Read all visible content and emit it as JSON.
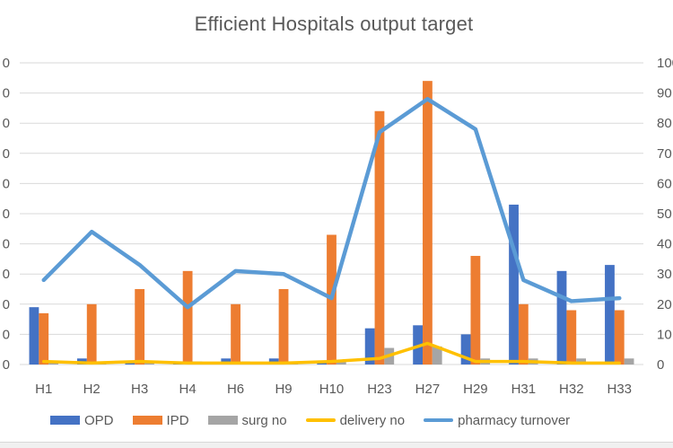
{
  "chart_data": {
    "type": "combo",
    "title": "Efficient Hospitals output target",
    "categories": [
      "H1",
      "H2",
      "H3",
      "H4",
      "H6",
      "H9",
      "H10",
      "H23",
      "H27",
      "H29",
      "H31",
      "H32",
      "H33"
    ],
    "series": [
      {
        "name": "OPD",
        "type": "bar",
        "color": "#4472C4",
        "values": [
          19,
          2,
          1,
          1,
          2,
          2,
          1,
          12,
          13,
          10,
          53,
          31,
          33
        ]
      },
      {
        "name": "IPD",
        "type": "bar",
        "color": "#ED7D31",
        "values": [
          17,
          20,
          25,
          31,
          20,
          25,
          43,
          84,
          94,
          36,
          20,
          18,
          18
        ]
      },
      {
        "name": "surg no",
        "type": "bar",
        "color": "#A5A5A5",
        "values": [
          1,
          1,
          1,
          1,
          1,
          1,
          1,
          5.5,
          6,
          2,
          2,
          2,
          2
        ]
      },
      {
        "name": "delivery no",
        "type": "line",
        "color": "#FFC000",
        "values": [
          1,
          0.5,
          1,
          0.5,
          0.5,
          0.5,
          1,
          2,
          7,
          1,
          1,
          0.5,
          0.5
        ]
      },
      {
        "name": "pharmacy turnover",
        "type": "line",
        "color": "#5B9BD5",
        "values": [
          28,
          44,
          33,
          19,
          31,
          30,
          22,
          77,
          88,
          78,
          28,
          21,
          22
        ]
      }
    ],
    "right_axis": {
      "min": 0,
      "max": 100,
      "step": 10,
      "tick_labels": [
        "100",
        "90",
        "80",
        "70",
        "60",
        "50",
        "40",
        "30",
        "20",
        "10",
        "0"
      ]
    },
    "left_axis": {
      "tick_fragments": [
        "0",
        "0",
        "0",
        "0",
        "0",
        "0",
        "0",
        "0",
        "0",
        "0",
        "0"
      ]
    },
    "grid": true,
    "legend_position": "bottom"
  },
  "styles": {
    "title_color": "#595959",
    "axis_label_color": "#595959",
    "gridline_color": "#D9D9D9",
    "background": "#FFFFFF",
    "bottom_strip_color": "#F0F0F0"
  }
}
